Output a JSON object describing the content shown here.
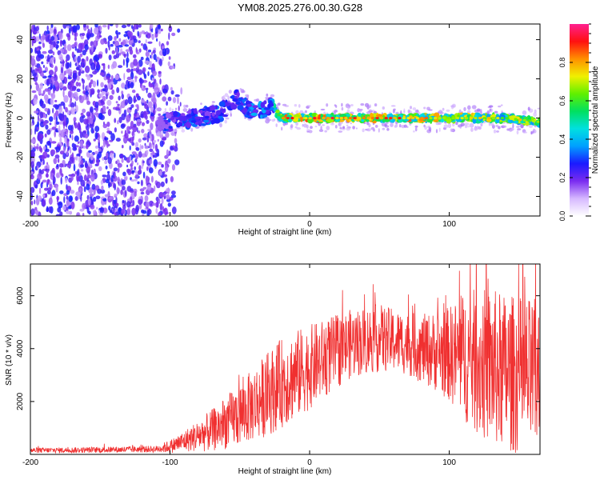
{
  "title": "YM08.2025.276.00.30.G28",
  "chart_data": [
    {
      "type": "heatmap",
      "title": "YM08.2025.276.00.30.G28",
      "xlabel": "Height of straight line (km)",
      "ylabel": "Frequency (Hz)",
      "xlim": [
        -200,
        165
      ],
      "ylim": [
        -50,
        48
      ],
      "xticks": [
        -200,
        -100,
        0,
        100
      ],
      "yticks": [
        -40,
        -20,
        0,
        20,
        40
      ],
      "colorbar": {
        "label": "Normalized spectral amplitude",
        "range": [
          0,
          1
        ],
        "ticks": [
          0.0,
          0.2,
          0.4,
          0.6,
          0.8
        ],
        "colormap": [
          "#ffffff",
          "#d6b8ff",
          "#7a2cf0",
          "#1a1aff",
          "#00a0ff",
          "#00e0e0",
          "#00e060",
          "#60f000",
          "#f0f000",
          "#ff9000",
          "#ff1010",
          "#ff2090"
        ]
      },
      "signal_band": [
        {
          "x": -105,
          "y": -3,
          "amp": 0.3
        },
        {
          "x": -95,
          "y": -1,
          "amp": 0.35
        },
        {
          "x": -80,
          "y": 0,
          "amp": 0.35
        },
        {
          "x": -65,
          "y": 2,
          "amp": 0.35
        },
        {
          "x": -52,
          "y": 10,
          "amp": 0.3
        },
        {
          "x": -40,
          "y": 2,
          "amp": 0.4
        },
        {
          "x": -28,
          "y": 6,
          "amp": 0.4
        },
        {
          "x": -20,
          "y": 0,
          "amp": 0.85
        },
        {
          "x": 0,
          "y": 0,
          "amp": 0.9
        },
        {
          "x": 50,
          "y": 0,
          "amp": 0.9
        },
        {
          "x": 100,
          "y": 0,
          "amp": 0.8
        },
        {
          "x": 140,
          "y": 0,
          "amp": 0.75
        },
        {
          "x": 165,
          "y": -2,
          "amp": 0.75
        }
      ]
    },
    {
      "type": "line",
      "xlabel": "Height of straight line (km)",
      "ylabel": "SNR (10 * v/v)",
      "xlim": [
        -200,
        165
      ],
      "ylim": [
        0,
        7200
      ],
      "xticks": [
        -200,
        -100,
        0,
        100
      ],
      "yticks": [
        2000,
        4000,
        6000
      ],
      "color": "#f03030",
      "series": [
        {
          "name": "SNR",
          "x": [
            -200,
            -150,
            -110,
            -100,
            -90,
            -80,
            -70,
            -60,
            -50,
            -40,
            -30,
            -20,
            -10,
            0,
            10,
            20,
            30,
            40,
            50,
            60,
            70,
            80,
            90,
            100,
            110,
            120,
            130,
            140,
            150,
            160,
            165
          ],
          "y": [
            150,
            170,
            200,
            300,
            500,
            700,
            900,
            1200,
            1500,
            1900,
            2300,
            2700,
            3000,
            3300,
            3600,
            3900,
            4200,
            4300,
            4400,
            4300,
            4200,
            4000,
            3900,
            3800,
            3700,
            3500,
            3300,
            3100,
            3000,
            2900,
            2800
          ],
          "spread": [
            100,
            110,
            130,
            250,
            400,
            600,
            800,
            1000,
            1200,
            1400,
            1600,
            1700,
            1700,
            1600,
            1500,
            1400,
            1300,
            1300,
            1300,
            1200,
            1200,
            1300,
            1500,
            1800,
            2400,
            2800,
            3000,
            3000,
            3000,
            3000,
            3000
          ]
        }
      ]
    }
  ]
}
